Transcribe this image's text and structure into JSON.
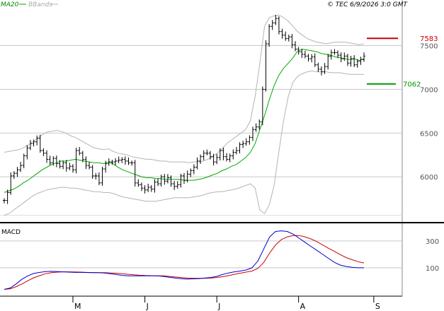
{
  "header": {
    "legend_ma": "MA20",
    "legend_bb": "BBands",
    "copyright": "© TEC 6/9/2026 3:0 GMT"
  },
  "macd_panel": {
    "label": "MACD"
  },
  "colors": {
    "price": "#000000",
    "ma20": "#00aa00",
    "bbands": "#b4b4b4",
    "resistance": "#cc0000",
    "support": "#009900",
    "macd_line": "#0000cc",
    "signal_line": "#cc0000",
    "grid": "#c8c8c8"
  },
  "chart_data": [
    {
      "type": "line",
      "chart": "price",
      "series_kind": "ohlc-bars",
      "ylim": [
        5500,
        7900
      ],
      "yticks": [
        6000,
        6500,
        7000,
        7500
      ],
      "ytick_labels": [
        "6000",
        "6500",
        "7000",
        "7500"
      ],
      "xticks": [
        "M",
        "J",
        "J",
        "A",
        "S"
      ],
      "xtick_index": [
        21,
        43,
        65,
        90,
        113
      ],
      "levels": [
        {
          "label": "7583",
          "value": 7583,
          "role": "resistance"
        },
        {
          "label": "7062",
          "value": 7062,
          "role": "support"
        }
      ],
      "price_close": [
        5730,
        5820,
        6010,
        6040,
        6080,
        6130,
        6240,
        6330,
        6380,
        6400,
        6440,
        6300,
        6270,
        6200,
        6160,
        6210,
        6150,
        6120,
        6160,
        6100,
        6120,
        6080,
        6300,
        6270,
        6200,
        6130,
        6110,
        6010,
        6010,
        5930,
        6090,
        6150,
        6170,
        6170,
        6180,
        6190,
        6200,
        6180,
        6160,
        6160,
        5930,
        5910,
        5870,
        5850,
        5880,
        5860,
        5940,
        5920,
        6000,
        5950,
        5990,
        5920,
        5890,
        5910,
        6010,
        5960,
        6030,
        6070,
        6110,
        6180,
        6230,
        6270,
        6270,
        6230,
        6170,
        6220,
        6300,
        6230,
        6200,
        6240,
        6280,
        6300,
        6370,
        6380,
        6400,
        6450,
        6540,
        6570,
        6630,
        7000,
        7520,
        7720,
        7760,
        7810,
        7660,
        7620,
        7580,
        7600,
        7510,
        7460,
        7430,
        7400,
        7380,
        7350,
        7370,
        7280,
        7230,
        7200,
        7260,
        7380,
        7420,
        7420,
        7390,
        7350,
        7380,
        7300,
        7350,
        7280,
        7320,
        7340,
        7380
      ],
      "series": [
        {
          "name": "MA20",
          "values": [
            5820,
            5840,
            5860,
            5890,
            5930,
            5960,
            6000,
            6040,
            6080,
            6110,
            6140,
            6160,
            6180,
            6180,
            6190,
            6200,
            6190,
            6180,
            6170,
            6160,
            6160,
            6150,
            6170,
            6150,
            6110,
            6080,
            6060,
            6040,
            6020,
            6000,
            5990,
            5990,
            5980,
            5980,
            5970,
            5970,
            5970,
            5970,
            5960,
            5960,
            5960,
            5970,
            5980,
            6000,
            6020,
            6040,
            6070,
            6090,
            6120,
            6140,
            6180,
            6220,
            6280,
            6380,
            6540,
            6700,
            6880,
            7040,
            7160,
            7240,
            7300,
            7360,
            7440,
            7460,
            7450,
            7440,
            7430,
            7410,
            7400,
            7390,
            7370,
            7360,
            7350,
            7340,
            7350,
            7330,
            7350
          ]
        },
        {
          "name": "BBands",
          "values": [
            6280,
            6290,
            6300,
            6310,
            6330,
            6360,
            6400,
            6440,
            6480,
            6510,
            6520,
            6530,
            6520,
            6500,
            6470,
            6450,
            6420,
            6390,
            6360,
            6330,
            6320,
            6310,
            6320,
            6290,
            6270,
            6260,
            6250,
            6230,
            6220,
            6210,
            6200,
            6200,
            6190,
            6180,
            6180,
            6170,
            6170,
            6170,
            6170,
            6160,
            6170,
            6170,
            6180,
            6200,
            6230,
            6270,
            6320,
            6380,
            6420,
            6460,
            6500,
            6540,
            6640,
            6920,
            7300,
            7720,
            7820,
            7840,
            7850,
            7820,
            7780,
            7720,
            7660,
            7620,
            7580,
            7560,
            7540,
            7530,
            7520,
            7530,
            7540,
            7540,
            7540,
            7530,
            7520,
            7510,
            7520
          ]
        },
        {
          "name": "BBands",
          "values": [
            5560,
            5580,
            5620,
            5660,
            5700,
            5740,
            5780,
            5810,
            5830,
            5850,
            5860,
            5870,
            5880,
            5880,
            5870,
            5870,
            5860,
            5850,
            5840,
            5830,
            5830,
            5820,
            5820,
            5810,
            5790,
            5770,
            5760,
            5750,
            5740,
            5730,
            5720,
            5720,
            5720,
            5730,
            5740,
            5750,
            5760,
            5760,
            5760,
            5760,
            5770,
            5780,
            5790,
            5810,
            5820,
            5830,
            5830,
            5840,
            5850,
            5860,
            5880,
            5900,
            5920,
            5870,
            5620,
            5580,
            5680,
            5900,
            6280,
            6640,
            6920,
            7080,
            7150,
            7180,
            7200,
            7210,
            7200,
            7200,
            7200,
            7190,
            7190,
            7190,
            7180,
            7170,
            7170,
            7170,
            7170
          ]
        }
      ]
    },
    {
      "type": "line",
      "chart": "MACD",
      "ylim": [
        -100,
        420
      ],
      "yticks": [
        100,
        300
      ],
      "ytick_labels": [
        "100",
        "300"
      ],
      "series": [
        {
          "name": "MACD",
          "values": [
            -60,
            -50,
            -20,
            15,
            40,
            58,
            66,
            72,
            74,
            72,
            70,
            68,
            66,
            66,
            65,
            64,
            64,
            62,
            56,
            50,
            44,
            40,
            40,
            40,
            40,
            40,
            40,
            36,
            30,
            24,
            20,
            16,
            18,
            20,
            24,
            28,
            36,
            50,
            62,
            70,
            76,
            84,
            100,
            150,
            240,
            330,
            370,
            375,
            370,
            350,
            320,
            290,
            260,
            230,
            200,
            170,
            140,
            120,
            110,
            104,
            100,
            100
          ]
        },
        {
          "name": "Signal",
          "values": [
            -60,
            -56,
            -40,
            -20,
            4,
            26,
            42,
            56,
            64,
            68,
            70,
            70,
            69,
            68,
            66,
            65,
            64,
            64,
            62,
            60,
            56,
            52,
            48,
            45,
            43,
            42,
            41,
            40,
            36,
            32,
            28,
            24,
            22,
            22,
            22,
            24,
            28,
            34,
            42,
            52,
            60,
            68,
            76,
            96,
            140,
            210,
            270,
            310,
            330,
            340,
            340,
            330,
            315,
            295,
            270,
            245,
            222,
            198,
            176,
            160,
            146,
            136
          ]
        }
      ]
    }
  ]
}
